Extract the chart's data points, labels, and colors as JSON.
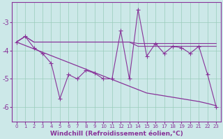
{
  "xlabel": "Windchill (Refroidissement éolien,°C)",
  "x": [
    0,
    1,
    2,
    3,
    4,
    5,
    6,
    7,
    8,
    9,
    10,
    11,
    12,
    13,
    14,
    15,
    16,
    17,
    18,
    19,
    20,
    21,
    22,
    23
  ],
  "line_flat1": [
    -3.7,
    -3.5,
    -3.7,
    -3.7,
    -3.7,
    -3.7,
    -3.7,
    -3.7,
    -3.7,
    -3.7,
    -3.7,
    -3.7,
    -3.7,
    -3.7,
    -3.75,
    -3.75,
    -3.75,
    -3.75,
    -3.75,
    -3.75,
    -3.75,
    -3.75,
    -3.75,
    -3.75
  ],
  "line_flat2": [
    -3.7,
    -3.5,
    -3.7,
    -3.7,
    -3.7,
    -3.7,
    -3.7,
    -3.7,
    -3.7,
    -3.7,
    -3.7,
    -3.7,
    -3.7,
    -3.7,
    -3.85,
    -3.85,
    -3.85,
    -3.85,
    -3.85,
    -3.85,
    -3.85,
    -3.85,
    -3.85,
    -3.85
  ],
  "line_diagonal": [
    -3.7,
    -3.82,
    -3.94,
    -4.06,
    -4.18,
    -4.3,
    -4.42,
    -4.54,
    -4.66,
    -4.78,
    -4.9,
    -5.02,
    -5.14,
    -5.26,
    -5.38,
    -5.5,
    -5.55,
    -5.6,
    -5.65,
    -5.7,
    -5.75,
    -5.8,
    -5.87,
    -5.95
  ],
  "line_jagged": [
    -3.7,
    -3.5,
    -3.9,
    -4.1,
    -4.45,
    -5.7,
    -4.85,
    -5.0,
    -4.7,
    -4.8,
    -5.0,
    -5.0,
    -3.3,
    -5.0,
    -2.55,
    -4.2,
    -3.75,
    -4.1,
    -3.85,
    -3.9,
    -4.1,
    -3.85,
    -4.85,
    -6.0
  ],
  "line_color": "#883399",
  "bg_color": "#cce8e8",
  "grid_color": "#99ccbb",
  "ylim": [
    -6.5,
    -2.3
  ],
  "yticks": [
    -6,
    -5,
    -4,
    -3
  ],
  "figsize": [
    3.2,
    2.0
  ],
  "dpi": 100
}
